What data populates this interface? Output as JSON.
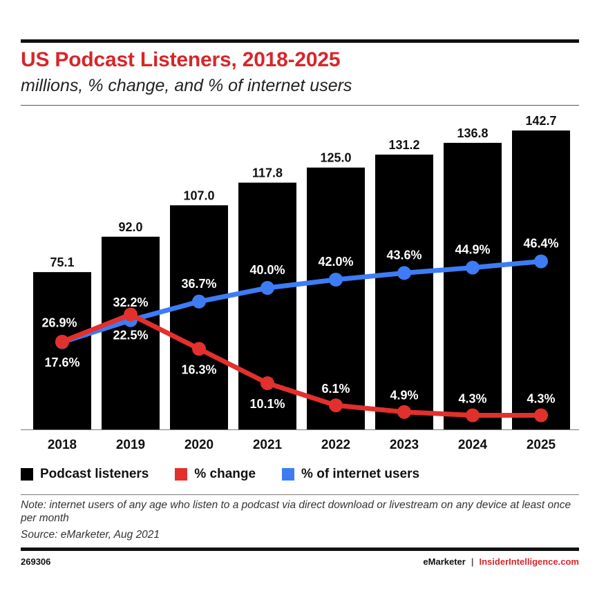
{
  "header": {
    "title": "US Podcast Listeners, 2018-2025",
    "subtitle": "millions, % change, and % of internet users"
  },
  "legend": [
    {
      "label": "Podcast listeners",
      "color": "#000000"
    },
    {
      "label": "% change",
      "color": "#e2302d"
    },
    {
      "label": "% of internet users",
      "color": "#3d7cf5"
    }
  ],
  "footnote": {
    "note": "Note: internet users of any age who listen to a podcast via direct download or livestream on any device at least once per month",
    "source": "Source: eMarketer, Aug 2021",
    "chart_id": "269306",
    "brand_left": "eMarketer",
    "brand_sep": "|",
    "brand_right": "InsiderIntelligence.com"
  },
  "chart_data": {
    "type": "bar",
    "title": "US Podcast Listeners, 2018-2025",
    "subtitle": "millions, % change, and % of internet users",
    "categories": [
      "2018",
      "2019",
      "2020",
      "2021",
      "2022",
      "2023",
      "2024",
      "2025"
    ],
    "series": [
      {
        "name": "Podcast listeners",
        "type": "bar",
        "color": "#000000",
        "values": [
          75.1,
          92.0,
          107.0,
          117.8,
          125.0,
          131.2,
          136.8,
          142.7
        ],
        "labels": [
          "75.1",
          "92.0",
          "107.0",
          "117.8",
          "125.0",
          "131.2",
          "136.8",
          "142.7"
        ]
      },
      {
        "name": "% change",
        "type": "line",
        "color": "#e2302d",
        "values": [
          17.6,
          22.5,
          16.3,
          10.1,
          6.1,
          4.9,
          4.3,
          4.3
        ],
        "labels": [
          "17.6%",
          "22.5%",
          "16.3%",
          "10.1%",
          "6.1%",
          "4.9%",
          "4.3%",
          "4.3%"
        ]
      },
      {
        "name": "% of internet users",
        "type": "line",
        "color": "#3d7cf5",
        "values": [
          26.9,
          32.2,
          36.7,
          40.0,
          42.0,
          43.6,
          44.9,
          46.4
        ],
        "labels": [
          "26.9%",
          "32.2%",
          "36.7%",
          "40.0%",
          "42.0%",
          "43.6%",
          "44.9%",
          "46.4%"
        ]
      }
    ],
    "grid": false,
    "legend_position": "bottom-left"
  }
}
